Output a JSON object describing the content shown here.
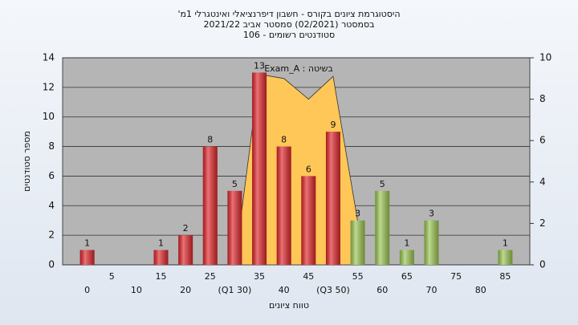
{
  "chart_data": {
    "type": "bar",
    "title": "היסטוגרמת ציונים בקורס - חשבון דיפרנציאלי ואינטגרלי 1מ'",
    "subtitle": "בסמסטר  (02/2021)  סמסטר אביב 2021/22",
    "subtitle2": "סטודנטים רשומים - 106",
    "x_label": "טווח ציונים",
    "y_label": "מספר סטודנטים",
    "annotation": "בשיטה : Exam_A",
    "categories": [
      "0",
      "5",
      "10",
      "15",
      "20",
      "25",
      "(Q1 30)",
      "35",
      "40",
      "45",
      "(Q3 50)",
      "55",
      "60",
      "65",
      "70",
      "75",
      "80",
      "85"
    ],
    "values": [
      1,
      0,
      0,
      1,
      2,
      8,
      5,
      13,
      8,
      6,
      9,
      3,
      5,
      1,
      3,
      0,
      0,
      1
    ],
    "colors": [
      "#e0262b",
      "#e0262b",
      "#e0262b",
      "#e0262b",
      "#e0262b",
      "#e0262b",
      "#e0262b",
      "#e0262b",
      "#e0262b",
      "#e0262b",
      "#e0262b",
      "#9cc653",
      "#9cc653",
      "#9cc653",
      "#9cc653",
      "#9cc653",
      "#9cc653",
      "#9cc653"
    ],
    "area": {
      "name": "Exam_A",
      "axis": "y2",
      "color": "#ffc757",
      "values": [
        null,
        null,
        null,
        null,
        null,
        null,
        0,
        9.2,
        9.0,
        8.0,
        9.1,
        2.1,
        null,
        null,
        null,
        null,
        null,
        null
      ]
    },
    "ylim": [
      0,
      14
    ],
    "yticks": [
      0,
      2,
      4,
      6,
      8,
      10,
      12,
      14
    ],
    "y2lim": [
      0,
      10
    ],
    "y2ticks": [
      0,
      2,
      4,
      6,
      8,
      10
    ],
    "grid": true
  }
}
